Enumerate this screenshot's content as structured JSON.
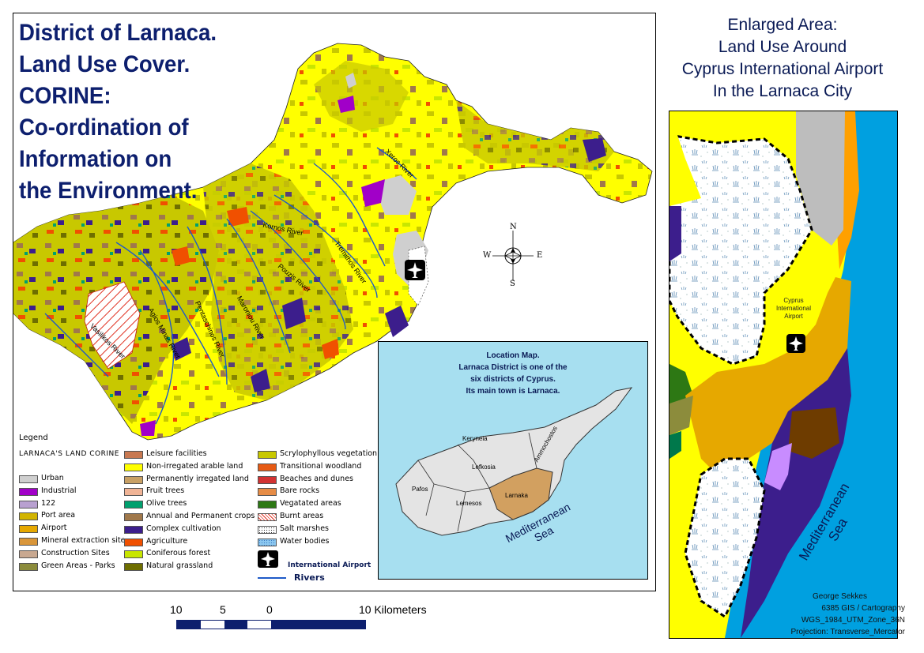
{
  "title": {
    "lines": [
      "District of Larnaca.",
      "Land Use Cover.",
      "CORINE:",
      "Co-ordination of",
      "Information on",
      "the Environment."
    ]
  },
  "rivers": {
    "labels": [
      "Kornos River",
      "Pouzis River",
      "Tremithos River",
      "Agios Minas River",
      "Xeros River",
      "Pentaschinos River",
      "Maroniou River",
      "Vasilikos River"
    ]
  },
  "compass": {
    "n": "N",
    "s": "S",
    "e": "E",
    "w": "W"
  },
  "legend": {
    "heading": "Legend",
    "subheading": "LARNACA'S LAND CORINE",
    "items": [
      {
        "label": "Urban",
        "color": "#cfcfcf"
      },
      {
        "label": "Industrial",
        "color": "#a100c8"
      },
      {
        "label": "122",
        "color": "#b8a0d0"
      },
      {
        "label": "Port area",
        "color": "#d2b400"
      },
      {
        "label": "Airport",
        "color": "#e6a800"
      },
      {
        "label": "Mineral extraction site",
        "color": "#d9963a"
      },
      {
        "label": "Construction Sites",
        "color": "#c8a890"
      },
      {
        "label": "Green  Areas - Parks",
        "color": "#8c8c3c"
      },
      {
        "label": "Leisure facilities",
        "color": "#c87850"
      },
      {
        "label": "Non-irregated arable land",
        "color": "#ffff00"
      },
      {
        "label": "Permanently irregated land",
        "color": "#c8a064"
      },
      {
        "label": "Fruit trees",
        "color": "#f0b496"
      },
      {
        "label": "Olive trees",
        "color": "#00a06e"
      },
      {
        "label": "Annual and Permanent crops",
        "color": "#a0784b"
      },
      {
        "label": "Complex cultivation",
        "color": "#3c1e8c"
      },
      {
        "label": "Agriculture",
        "color": "#f05000"
      },
      {
        "label": "Coniferous forest",
        "color": "#c8e600"
      },
      {
        "label": "Natural grassland",
        "color": "#6e6e00"
      },
      {
        "label": "Scrylophyllous vegetation",
        "color": "#c8c800"
      },
      {
        "label": "Transitional woodland",
        "color": "#e65a14"
      },
      {
        "label": "Beaches and dunes",
        "color": "#d23232"
      },
      {
        "label": "Bare rocks",
        "color": "#e68c46"
      },
      {
        "label": "Vegatated areas",
        "color": "#2d7814"
      },
      {
        "label": "Burnt areas",
        "color": "#ffffff"
      },
      {
        "label": "Salt marshes",
        "color": "#ffffff"
      },
      {
        "label": "Water bodies",
        "color": "#8cc8f0"
      }
    ],
    "airport_label": "International Airport",
    "rivers_label": "Rivers"
  },
  "inset": {
    "title_lines": [
      "Location Map.",
      "Larnaca District is one of the",
      "six districts of Cyprus.",
      "Its main town is Larnaca."
    ],
    "districts": [
      "Keryneia",
      "Ammochostos",
      "Lefkosia",
      "Pafos",
      "Lemesos",
      "Larnaka"
    ],
    "sea_label": [
      "Mediterranean",
      "Sea"
    ]
  },
  "enlarged": {
    "title_lines": [
      "Enlarged Area:",
      "Land Use Around",
      "Cyprus International Airport",
      "In the Larnaca City"
    ],
    "airport_label": [
      "Cyprus",
      "International",
      "Airport"
    ],
    "sea_label": [
      "Mediterranean",
      "Sea"
    ]
  },
  "scalebar": {
    "labels": [
      "10",
      "5",
      "0",
      "10 Kilometers"
    ]
  },
  "credits": [
    "George Sekkes",
    "6385 GIS / Cartography",
    "WGS_1984_UTM_Zone_36N",
    "Projection: Transverse_Mercator"
  ]
}
